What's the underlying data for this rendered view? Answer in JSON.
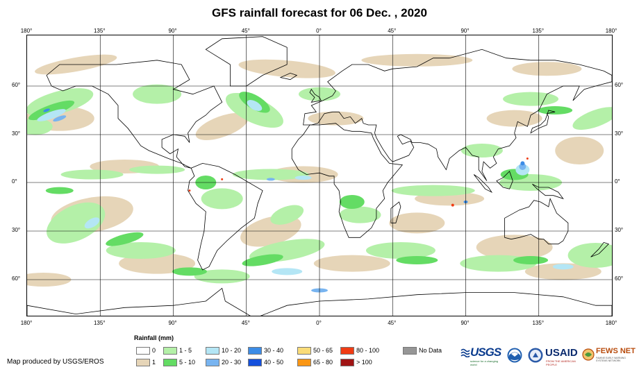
{
  "title": "GFS rainfall forecast for 06 Dec. , 2020",
  "lon_ticks_top": [
    {
      "label": "180°",
      "lon": -180
    },
    {
      "label": "135°",
      "lon": -135
    },
    {
      "label": "90°",
      "lon": -90
    },
    {
      "label": "45°",
      "lon": -45
    },
    {
      "label": "0°",
      "lon": 0
    },
    {
      "label": "45°",
      "lon": 45
    },
    {
      "label": "90°",
      "lon": 90
    },
    {
      "label": "135°",
      "lon": 135
    },
    {
      "label": "180°",
      "lon": 180
    }
  ],
  "lon_ticks_bottom": [
    {
      "label": "180°",
      "lon": -180
    },
    {
      "label": "135°",
      "lon": -135
    },
    {
      "label": "90°",
      "lon": -90
    },
    {
      "label": "45°",
      "lon": -45
    },
    {
      "label": "0°",
      "lon": 0
    },
    {
      "label": "45°",
      "lon": 45
    },
    {
      "label": "90°",
      "lon": 90
    },
    {
      "label": "135°",
      "lon": 135
    },
    {
      "label": "180°",
      "lon": 180
    }
  ],
  "lat_ticks_left": [
    {
      "label": "60°",
      "lat": 60
    },
    {
      "label": "30°",
      "lat": 30
    },
    {
      "label": "0°",
      "lat": 0
    },
    {
      "label": "30°",
      "lat": -30
    },
    {
      "label": "60°",
      "lat": -60
    }
  ],
  "lat_ticks_right": [
    {
      "label": "60°",
      "lat": 60
    },
    {
      "label": "30°",
      "lat": 30
    },
    {
      "label": "0°",
      "lat": 0
    },
    {
      "label": "30°",
      "lat": -30
    },
    {
      "label": "60°",
      "lat": -60
    }
  ],
  "legend": {
    "title": "Rainfall (mm)",
    "items": [
      {
        "label": "0",
        "color": "#ffffff"
      },
      {
        "label": "1",
        "color": "#e6d5b8"
      },
      {
        "label": "1 - 5",
        "color": "#b4f0a8"
      },
      {
        "label": "5 - 10",
        "color": "#64dc64"
      },
      {
        "label": "10 - 20",
        "color": "#b4e6f5"
      },
      {
        "label": "20 - 30",
        "color": "#78b4f0"
      },
      {
        "label": "30 - 40",
        "color": "#3c8ce6"
      },
      {
        "label": "40 - 50",
        "color": "#1450dc"
      },
      {
        "label": "50 - 65",
        "color": "#fadc78"
      },
      {
        "label": "65 - 80",
        "color": "#fa9614"
      },
      {
        "label": "80 - 100",
        "color": "#f03c14"
      },
      {
        "label": "> 100",
        "color": "#a01414"
      },
      {
        "label": "No Data",
        "color": "#969696"
      }
    ]
  },
  "credit": "Map produced by USGS/EROS",
  "logos": {
    "usgs": {
      "word": "USGS",
      "tag": "science for a changing world"
    },
    "usaid": {
      "word": "USAID",
      "tag": "FROM THE AMERICAN PEOPLE"
    },
    "fews": {
      "word": "FEWS NET",
      "tag": "FAMINE EARLY WARNING SYSTEMS NETWORK"
    }
  },
  "colors": {
    "land_outline": "#000000",
    "grid": "#000000"
  }
}
